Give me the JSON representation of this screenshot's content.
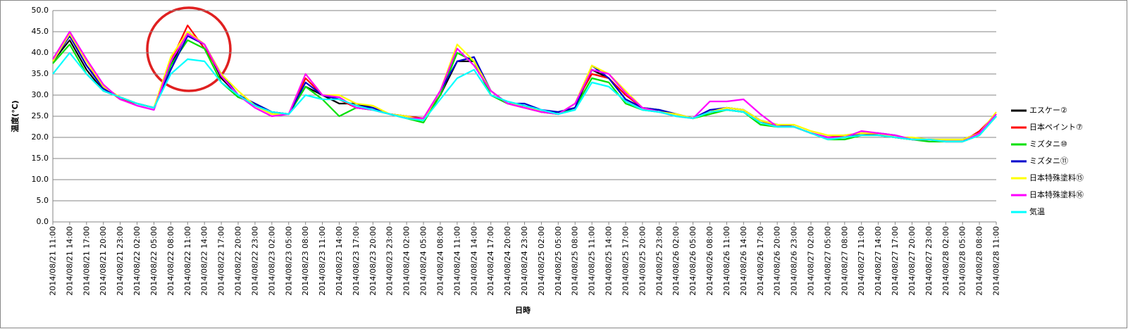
{
  "chart_data": {
    "type": "line",
    "y_label": "温度(℃)",
    "x_label": "日時",
    "ylim": [
      0,
      50
    ],
    "yticks": [
      {
        "value": 0,
        "label": "0.0"
      },
      {
        "value": 5,
        "label": "5.0"
      },
      {
        "value": 10,
        "label": "10.0"
      },
      {
        "value": 15,
        "label": "15.0"
      },
      {
        "value": 20,
        "label": "20.0"
      },
      {
        "value": 25,
        "label": "25.0"
      },
      {
        "value": 30,
        "label": "30.0"
      },
      {
        "value": 35,
        "label": "35.0"
      },
      {
        "value": 40,
        "label": "40.0"
      },
      {
        "value": 45,
        "label": "45.0"
      },
      {
        "value": 50,
        "label": "50.0"
      }
    ],
    "grid": true,
    "legend": "right",
    "categories": [
      "2014/08/21 11:00",
      "2014/08/21 14:00",
      "2014/08/21 17:00",
      "2014/08/21 20:00",
      "2014/08/21 23:00",
      "2014/08/22 02:00",
      "2014/08/22 05:00",
      "2014/08/22 08:00",
      "2014/08/22 11:00",
      "2014/08/22 14:00",
      "2014/08/22 17:00",
      "2014/08/22 20:00",
      "2014/08/22 23:00",
      "2014/08/23 02:00",
      "2014/08/23 05:00",
      "2014/08/23 08:00",
      "2014/08/23 11:00",
      "2014/08/23 14:00",
      "2014/08/23 17:00",
      "2014/08/23 20:00",
      "2014/08/23 23:00",
      "2014/08/24 02:00",
      "2014/08/24 05:00",
      "2014/08/24 08:00",
      "2014/08/24 11:00",
      "2014/08/24 14:00",
      "2014/08/24 17:00",
      "2014/08/24 20:00",
      "2014/08/24 23:00",
      "2014/08/25 02:00",
      "2014/08/25 05:00",
      "2014/08/25 08:00",
      "2014/08/25 11:00",
      "2014/08/25 14:00",
      "2014/08/25 17:00",
      "2014/08/25 20:00",
      "2014/08/25 23:00",
      "2014/08/26 02:00",
      "2014/08/26 05:00",
      "2014/08/26 08:00",
      "2014/08/26 11:00",
      "2014/08/26 14:00",
      "2014/08/26 17:00",
      "2014/08/26 20:00",
      "2014/08/26 23:00",
      "2014/08/27 02:00",
      "2014/08/27 05:00",
      "2014/08/27 08:00",
      "2014/08/27 11:00",
      "2014/08/27 14:00",
      "2014/08/27 17:00",
      "2014/08/27 20:00",
      "2014/08/27 23:00",
      "2014/08/28 02:00",
      "2014/08/28 05:00",
      "2014/08/28 08:00",
      "2014/08/28 11:00"
    ],
    "series": [
      {
        "name": "エスケー②",
        "color": "#000000",
        "values": [
          38,
          43,
          36,
          31,
          29.5,
          28,
          27,
          37,
          45,
          42,
          34,
          30,
          28,
          26,
          25.5,
          32,
          30,
          28,
          28,
          27,
          25.5,
          25,
          24,
          30,
          38,
          38,
          30,
          28,
          27.5,
          26,
          26,
          27,
          36,
          34,
          29,
          27,
          26.5,
          25.5,
          24.5,
          26,
          27,
          26.5,
          24,
          23,
          22.5,
          21,
          20,
          20,
          21,
          21,
          20,
          19.5,
          19.5,
          19.5,
          19.5,
          21,
          25
        ]
      },
      {
        "name": "日本ペイント⑦",
        "color": "#ff0000",
        "values": [
          38.5,
          44,
          37,
          32,
          29,
          28,
          27,
          38,
          46.5,
          41,
          35,
          30,
          27.5,
          25.5,
          25.5,
          34,
          30,
          29,
          27,
          26.5,
          25.5,
          25,
          24.5,
          31,
          40,
          38,
          31,
          28,
          27,
          26,
          25.5,
          28,
          35,
          34,
          30,
          27,
          26,
          25.5,
          24.5,
          26,
          26.5,
          26,
          23.5,
          23,
          22.5,
          21,
          20,
          20.5,
          21,
          20.5,
          20,
          19.5,
          19.5,
          19,
          19,
          21.5,
          25.5
        ]
      },
      {
        "name": "ミズタニ⑩",
        "color": "#00e000",
        "values": [
          37.5,
          42,
          35,
          31,
          29.5,
          28,
          27,
          37,
          43,
          41,
          33,
          29.5,
          28,
          26,
          25.5,
          32,
          29,
          25,
          27,
          26.5,
          25.5,
          24.5,
          23.5,
          30,
          40,
          38,
          30,
          28,
          27.5,
          26,
          25.5,
          27,
          34,
          33,
          28,
          26.5,
          26,
          25.5,
          24.5,
          25.5,
          26.5,
          26,
          23,
          22.5,
          22.5,
          21,
          19.5,
          19.5,
          20.5,
          20.5,
          20,
          19.5,
          19,
          19,
          19,
          20.5,
          25
        ]
      },
      {
        "name": "ミズタニ⑪",
        "color": "#0000cc",
        "values": [
          38,
          44,
          37,
          31.5,
          29.5,
          28,
          27,
          36,
          44,
          42,
          35,
          30,
          28,
          26,
          25.5,
          33,
          30,
          29,
          27.5,
          27,
          25.5,
          25,
          24,
          31,
          38,
          39,
          31,
          28,
          28,
          26.5,
          26,
          27,
          37,
          34,
          29,
          27,
          26.5,
          25.5,
          24.5,
          26.5,
          27,
          26.5,
          24,
          23,
          22.5,
          21,
          20,
          20,
          21,
          21,
          20.5,
          19.5,
          19.5,
          19.5,
          19.5,
          21,
          25
        ]
      },
      {
        "name": "日本特殊塗料⑮",
        "color": "#ffff00",
        "values": [
          38,
          44.5,
          38,
          32,
          29.5,
          28,
          27,
          39,
          45,
          42,
          35,
          31,
          27.5,
          25.5,
          25.5,
          35,
          30,
          30,
          28,
          27.5,
          25.5,
          25,
          24,
          31,
          42,
          38,
          31,
          28,
          27.5,
          26,
          25.5,
          28,
          37,
          35,
          31,
          27,
          26,
          25.5,
          24.5,
          26,
          27,
          26.5,
          24,
          23,
          23,
          21.5,
          20.5,
          20.5,
          21,
          21,
          20,
          20,
          19.5,
          19.5,
          19.5,
          21,
          26
        ]
      },
      {
        "name": "日本特殊塗料⑯",
        "color": "#ff00ff",
        "values": [
          38.5,
          45,
          38.5,
          32.5,
          29,
          27.5,
          26.5,
          38,
          44.5,
          42,
          34.5,
          30,
          27,
          25,
          25.5,
          35,
          30,
          29.5,
          27,
          26.5,
          25.5,
          24.5,
          24.5,
          31,
          41,
          37,
          31,
          28,
          27,
          26,
          25.5,
          28,
          36,
          35,
          30.5,
          27,
          26,
          25,
          24.5,
          28.5,
          28.5,
          29,
          25.5,
          22.5,
          22.5,
          21,
          20,
          20,
          21.5,
          21,
          20.5,
          19.5,
          19.5,
          19,
          19,
          21,
          25.5
        ]
      },
      {
        "name": "気温",
        "color": "#00ffff",
        "values": [
          35,
          40,
          35,
          31,
          29.5,
          28,
          27,
          35,
          38.5,
          38,
          33,
          30,
          27.5,
          26,
          25.5,
          30,
          29,
          29,
          27.5,
          26.5,
          25.5,
          24.5,
          24,
          29,
          34,
          36,
          30,
          28.5,
          27.5,
          26.5,
          25.5,
          26.5,
          33,
          32,
          28.5,
          26.5,
          26,
          25,
          24.5,
          26,
          26.5,
          26,
          23.5,
          22.5,
          22.5,
          21,
          19.5,
          20,
          20.5,
          20.5,
          20,
          19.5,
          19.5,
          19,
          19,
          20.5,
          25
        ]
      }
    ]
  }
}
